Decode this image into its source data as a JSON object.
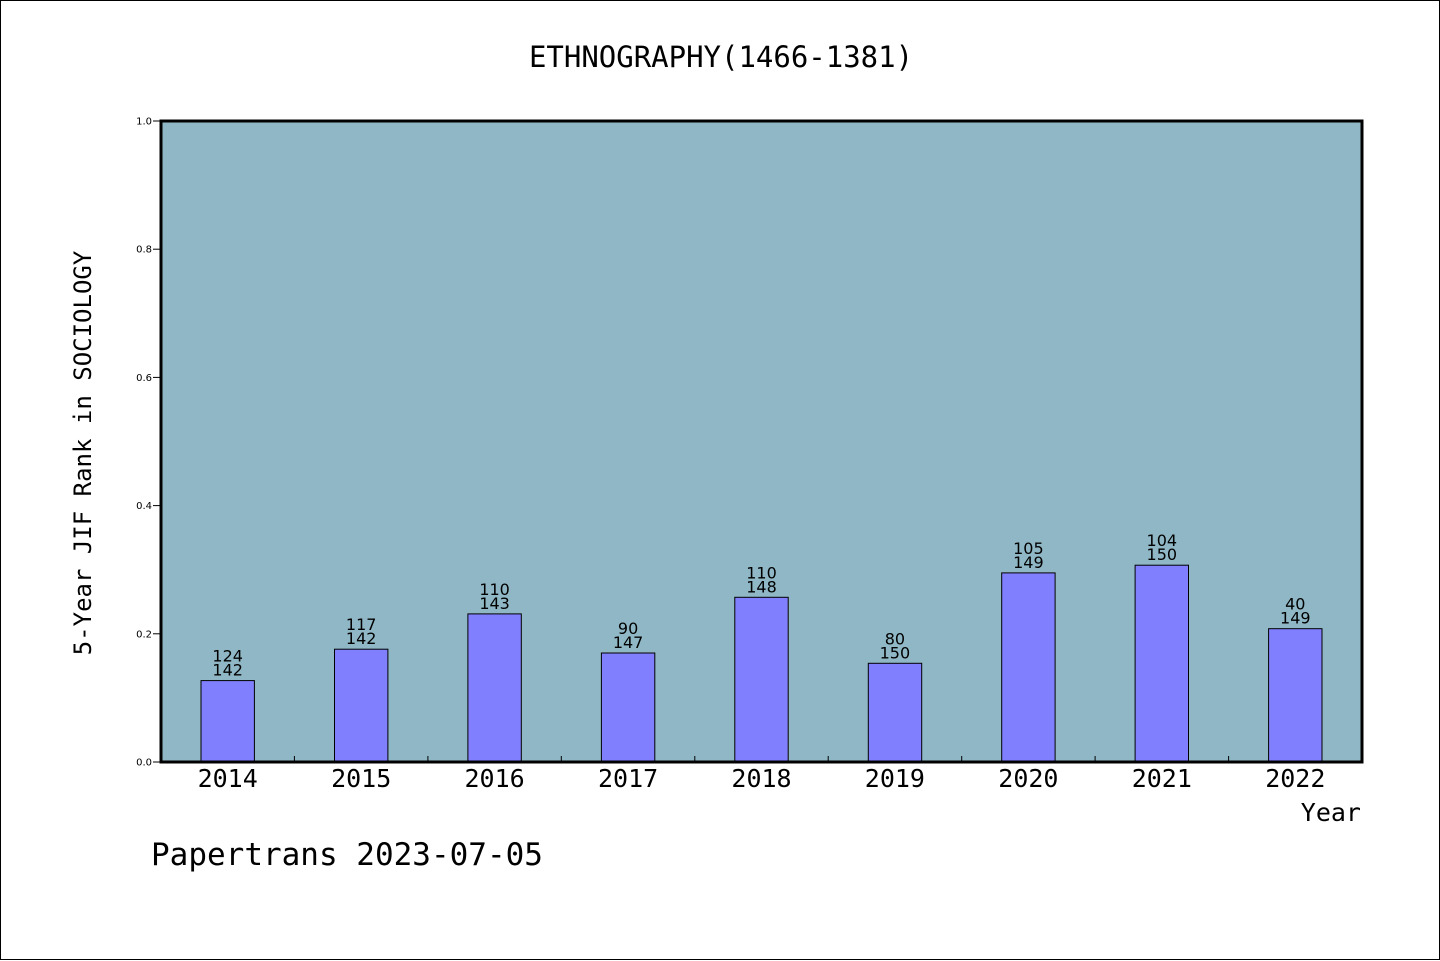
{
  "chart_data": {
    "type": "bar",
    "title": "ETHNOGRAPHY(1466-1381)",
    "xlabel": "Year",
    "ylabel": "5-Year JIF Rank in SOCIOLOGY",
    "ylim": [
      0,
      1.0
    ],
    "yticks": [
      "0.0",
      "0.2",
      "0.4",
      "0.6",
      "0.8",
      "1.0"
    ],
    "grid": false,
    "categories": [
      "2014",
      "2015",
      "2016",
      "2017",
      "2018",
      "2019",
      "2020",
      "2021",
      "2022"
    ],
    "values": [
      0.127,
      0.176,
      0.231,
      0.17,
      0.257,
      0.154,
      0.295,
      0.307,
      0.208
    ],
    "rank_labels": [
      "124",
      "117",
      "110",
      "90",
      "110",
      "80",
      "105",
      "104",
      "40"
    ],
    "total_labels": [
      "142",
      "142",
      "143",
      "147",
      "148",
      "150",
      "149",
      "150",
      "149"
    ],
    "colors": {
      "plot_background": "#8fb7c5",
      "bar_fill": "#8080ff",
      "bar_stroke": "#000000"
    }
  },
  "footer": {
    "text": "Papertrans 2023-07-05"
  }
}
